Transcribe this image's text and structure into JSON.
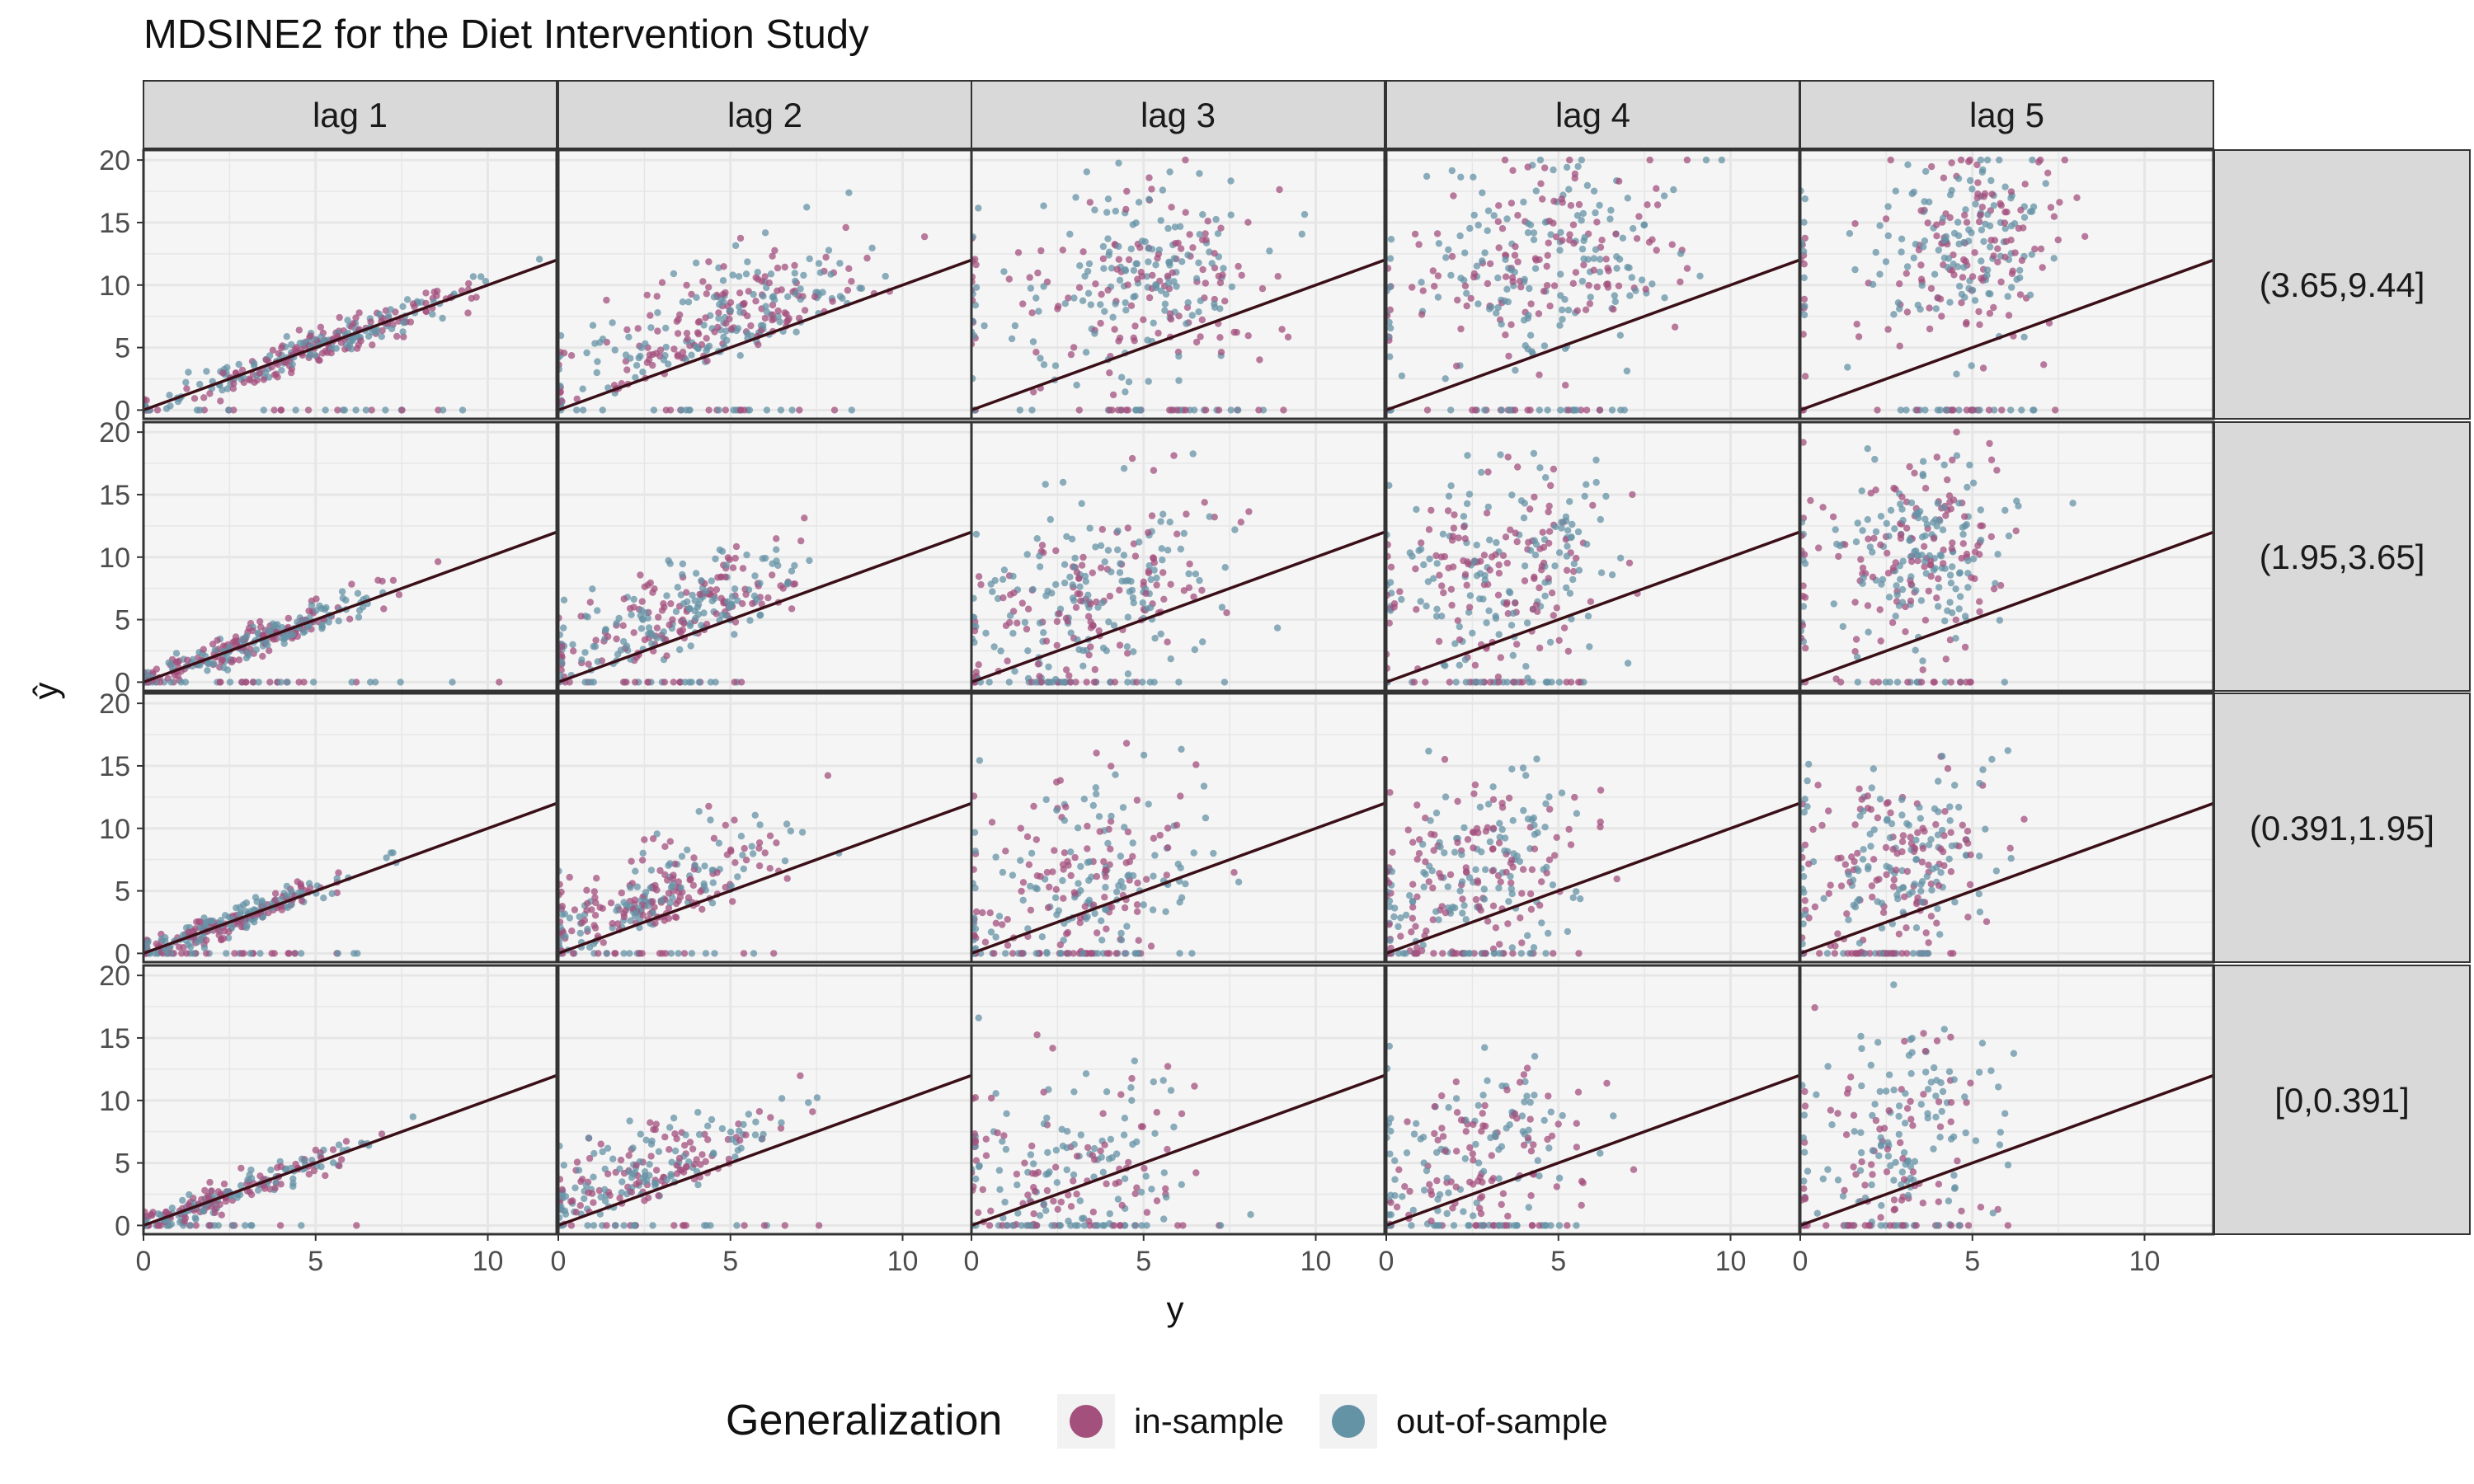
{
  "chart_data": {
    "type": "scatter",
    "title": "MDSINE2 for the Diet Intervention Study",
    "xlabel": "y",
    "ylabel": "ŷ",
    "facet_columns": [
      "lag 1",
      "lag 2",
      "lag 3",
      "lag 4",
      "lag 5"
    ],
    "facet_rows": [
      "(3.65,9.44]",
      "(1.95,3.65]",
      "(0.391,1.95]",
      "[0,0.391]"
    ],
    "xlim": [
      0,
      12
    ],
    "ylim": [
      -0.7,
      20.8
    ],
    "x_ticks": [
      0,
      5,
      10
    ],
    "y_ticks": [
      0,
      5,
      10,
      15,
      20
    ],
    "reference_line": {
      "slope": 1,
      "intercept": 0,
      "color": "#3b0f17"
    },
    "grid": true,
    "legend": {
      "title": "Generalization",
      "position": "bottom",
      "entries": [
        {
          "label": "in-sample",
          "color": "#a3507d"
        },
        {
          "label": "out-of-sample",
          "color": "#6593a6"
        }
      ]
    },
    "series": [
      {
        "name": "in-sample",
        "color": "#a3507d"
      },
      {
        "name": "out-of-sample",
        "color": "#6593a6"
      }
    ],
    "panel_point_clouds": {
      "description_rows": [
        "(3.65,9.44]",
        "(1.95,3.65]",
        "(0.391,1.95]",
        "[0,0.391]"
      ],
      "cells": [
        [
          {
            "x_center": 5.0,
            "x_spread": 2.2,
            "y_mode": "diagonal",
            "y_center": 5.0,
            "y_spread": 1.0,
            "count": 320
          },
          {
            "x_center": 5.0,
            "x_spread": 2.0,
            "y_mode": "above",
            "y_center": 7.5,
            "y_spread": 3.2,
            "count": 320
          },
          {
            "x_center": 5.3,
            "x_spread": 1.8,
            "y_mode": "cloud",
            "y_center": 11.0,
            "y_spread": 4.0,
            "count": 320
          },
          {
            "x_center": 4.8,
            "x_spread": 1.8,
            "y_mode": "cloud",
            "y_center": 12.5,
            "y_spread": 4.2,
            "count": 320
          },
          {
            "x_center": 4.8,
            "x_spread": 1.3,
            "y_mode": "cloud",
            "y_center": 13.0,
            "y_spread": 4.0,
            "count": 300
          }
        ],
        [
          {
            "x_center": 3.5,
            "x_spread": 2.0,
            "y_mode": "diagonal",
            "y_center": 3.5,
            "y_spread": 0.9,
            "count": 300
          },
          {
            "x_center": 3.5,
            "x_spread": 1.7,
            "y_mode": "above",
            "y_center": 5.0,
            "y_spread": 2.6,
            "count": 300
          },
          {
            "x_center": 3.6,
            "x_spread": 1.8,
            "y_mode": "cloud",
            "y_center": 6.5,
            "y_spread": 3.6,
            "count": 300
          },
          {
            "x_center": 3.4,
            "x_spread": 1.6,
            "y_mode": "cloud",
            "y_center": 9.0,
            "y_spread": 4.0,
            "count": 300
          },
          {
            "x_center": 3.6,
            "x_spread": 1.2,
            "y_mode": "cloud",
            "y_center": 10.5,
            "y_spread": 4.0,
            "count": 300
          }
        ],
        [
          {
            "x_center": 2.5,
            "x_spread": 1.8,
            "y_mode": "diagonal",
            "y_center": 2.5,
            "y_spread": 0.8,
            "count": 260
          },
          {
            "x_center": 2.8,
            "x_spread": 1.8,
            "y_mode": "above",
            "y_center": 3.5,
            "y_spread": 2.4,
            "count": 280
          },
          {
            "x_center": 3.3,
            "x_spread": 1.6,
            "y_mode": "cloud",
            "y_center": 5.5,
            "y_spread": 3.8,
            "count": 280
          },
          {
            "x_center": 2.8,
            "x_spread": 1.5,
            "y_mode": "cloud",
            "y_center": 6.0,
            "y_spread": 4.0,
            "count": 280
          },
          {
            "x_center": 2.8,
            "x_spread": 1.3,
            "y_mode": "cloud",
            "y_center": 7.0,
            "y_spread": 4.0,
            "count": 280
          }
        ],
        [
          {
            "x_center": 2.5,
            "x_spread": 1.8,
            "y_mode": "diagonal",
            "y_center": 2.5,
            "y_spread": 0.8,
            "count": 240
          },
          {
            "x_center": 2.8,
            "x_spread": 1.8,
            "y_mode": "above",
            "y_center": 3.5,
            "y_spread": 2.4,
            "count": 240
          },
          {
            "x_center": 3.0,
            "x_spread": 1.8,
            "y_mode": "cloud",
            "y_center": 4.5,
            "y_spread": 3.6,
            "count": 220
          },
          {
            "x_center": 2.8,
            "x_spread": 1.7,
            "y_mode": "cloud",
            "y_center": 5.5,
            "y_spread": 4.0,
            "count": 220
          },
          {
            "x_center": 3.0,
            "x_spread": 1.3,
            "y_mode": "cloud",
            "y_center": 6.5,
            "y_spread": 4.2,
            "count": 220
          }
        ]
      ]
    }
  }
}
